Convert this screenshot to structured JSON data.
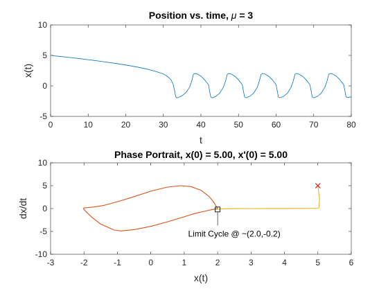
{
  "chart_data": [
    {
      "type": "line",
      "title_prefix": "Position vs. time,",
      "title_symbol": "μ",
      "title_suffix": "= 3",
      "xlabel": "t",
      "ylabel": "x(t)",
      "xlim": [
        0,
        80
      ],
      "ylim": [
        -5,
        10
      ],
      "xticks": [
        0,
        10,
        20,
        30,
        40,
        50,
        60,
        70,
        80
      ],
      "yticks": [
        -5,
        0,
        5,
        10
      ],
      "grid": false,
      "line_color": "#0072BD",
      "series": [
        {
          "x": [
            0,
            2,
            5,
            8,
            11,
            14,
            17,
            20,
            23,
            26,
            28,
            30,
            31,
            32,
            32.6,
            33,
            33.3,
            33.6,
            34,
            35,
            36,
            37,
            37.6,
            38,
            38.4,
            39,
            40,
            41,
            42,
            42.3,
            42.6,
            43,
            44,
            45,
            46,
            46.6,
            47,
            47.4,
            48,
            49,
            50,
            51,
            51.3,
            51.6,
            52,
            53,
            54,
            55,
            55.6,
            56,
            56.4,
            57,
            58,
            59,
            60,
            60.3,
            60.6,
            61,
            62,
            63,
            64,
            64.6,
            65,
            65.4,
            66,
            67,
            68,
            69,
            69.3,
            69.6,
            70,
            71,
            72,
            73,
            73.6,
            74,
            74.4,
            75,
            76,
            77,
            78,
            78.3,
            78.6,
            79,
            80
          ],
          "y": [
            5.0,
            4.86,
            4.67,
            4.45,
            4.23,
            3.98,
            3.72,
            3.43,
            3.1,
            2.7,
            2.38,
            1.95,
            1.6,
            1.05,
            0.3,
            -0.8,
            -1.8,
            -1.95,
            -1.9,
            -1.6,
            -1.1,
            -0.2,
            0.9,
            1.9,
            2.05,
            1.95,
            1.6,
            1.0,
            0.2,
            -0.8,
            -1.8,
            -1.95,
            -1.7,
            -1.2,
            -0.2,
            0.9,
            1.9,
            2.05,
            1.95,
            1.6,
            1.0,
            0.2,
            -0.8,
            -1.8,
            -1.95,
            -1.7,
            -1.2,
            -0.2,
            0.9,
            1.9,
            2.05,
            1.95,
            1.6,
            1.0,
            0.2,
            -0.8,
            -1.8,
            -1.95,
            -1.7,
            -1.2,
            -0.2,
            0.9,
            1.9,
            2.05,
            1.95,
            1.6,
            1.0,
            0.2,
            -0.8,
            -1.8,
            -1.95,
            -1.7,
            -1.2,
            -0.2,
            0.9,
            1.9,
            2.05,
            1.95,
            1.6,
            1.0,
            0.2,
            -0.8,
            -1.8,
            -1.9,
            -1.8
          ]
        }
      ]
    },
    {
      "type": "line",
      "title": "Phase Portrait, x(0) = 5.00, x'(0) = 5.00",
      "xlabel": "x(t)",
      "ylabel": "dx/dt",
      "xlim": [
        -3,
        6
      ],
      "ylim": [
        -10,
        10
      ],
      "xticks": [
        -3,
        -2,
        -1,
        0,
        1,
        2,
        3,
        4,
        5,
        6
      ],
      "yticks": [
        -10,
        -5,
        0,
        5,
        10
      ],
      "grid": false,
      "line_color": "#EDB120",
      "orbit_color": "#D95319",
      "series": [
        {
          "x": [
            5.0,
            5.05,
            5.03,
            5.0,
            4.0,
            3.0,
            2.5,
            2.2,
            2.05,
            1.95,
            1.8
          ],
          "y": [
            5.0,
            2.0,
            0.2,
            0.05,
            0.02,
            0.0,
            -0.02,
            -0.05,
            -0.1,
            -0.15,
            -0.2
          ]
        },
        {
          "x": [
            2.0,
            1.9,
            1.75,
            1.5,
            1.2,
            0.9,
            0.5,
            0.0,
            -0.5,
            -1.0,
            -1.4,
            -1.7,
            -1.9,
            -2.0,
            -2.02,
            -1.95,
            -1.75,
            -1.5,
            -1.1,
            -0.9,
            -0.5,
            0.0,
            0.5,
            1.0,
            1.3,
            1.6,
            1.85,
            2.0
          ],
          "y": [
            0.0,
            1.2,
            2.6,
            4.0,
            4.8,
            5.0,
            4.7,
            3.8,
            2.6,
            1.5,
            0.7,
            0.35,
            0.2,
            0.15,
            0.0,
            -0.6,
            -2.0,
            -3.4,
            -4.7,
            -4.9,
            -4.6,
            -3.9,
            -2.9,
            -1.8,
            -1.1,
            -0.6,
            -0.2,
            0.0
          ]
        }
      ],
      "start_marker": {
        "x": 5.0,
        "y": 5.0,
        "shape": "x",
        "color": "#FF0000"
      },
      "end_marker": {
        "x": 2.0,
        "y": -0.2,
        "shape": "square",
        "color": "#000000"
      },
      "annotation": {
        "text": "Limit Cycle @ ~(2.0,-0.2)",
        "x": 2.0,
        "y": -0.2,
        "color": "#000000"
      }
    }
  ]
}
